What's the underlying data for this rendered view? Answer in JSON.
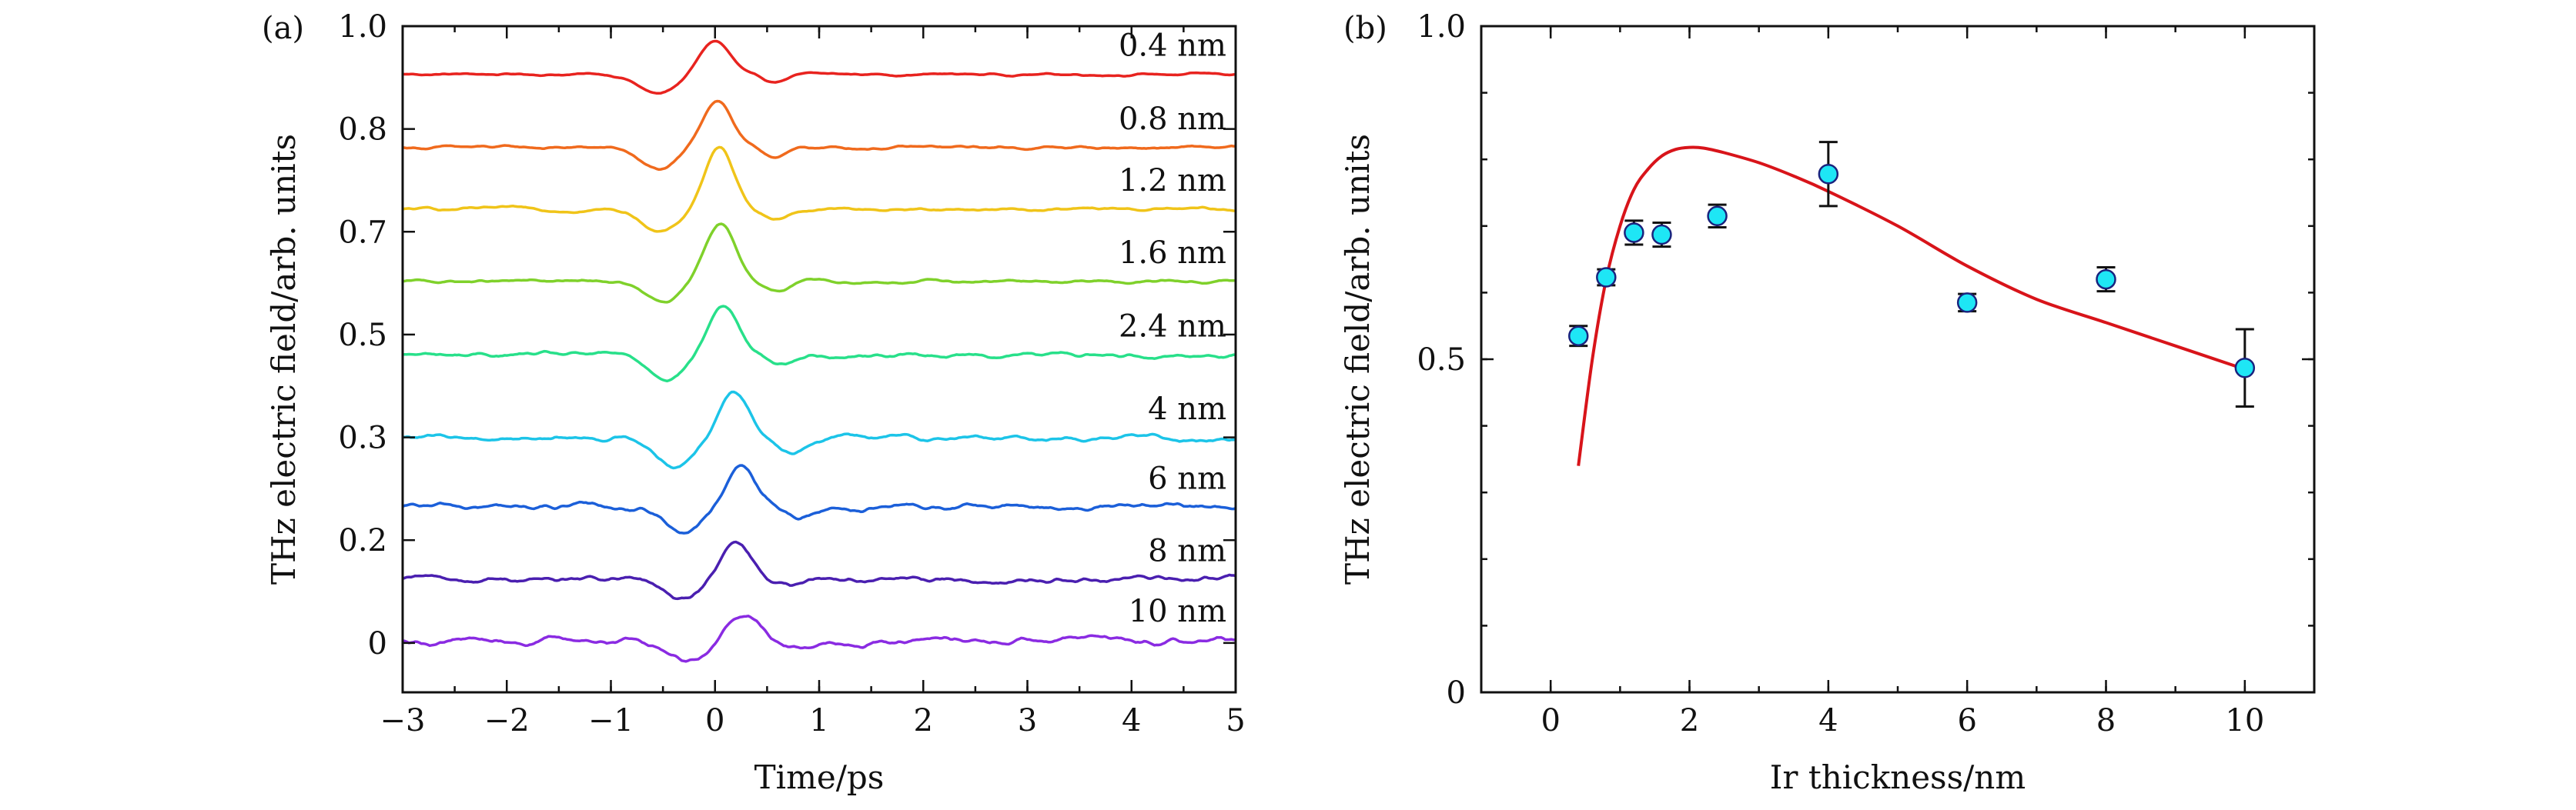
{
  "chart_data": [
    {
      "type": "line",
      "panel_label": "(a)",
      "xlabel": "Time/ps",
      "ylabel": "THz electric field/arb. units",
      "xlim": [
        -3,
        5
      ],
      "x_ticks": [
        -3,
        -2,
        -1,
        0,
        1,
        2,
        3,
        4,
        5
      ],
      "x_tick_labels": [
        "−3",
        "−2",
        "−1",
        "0",
        "1",
        "2",
        "3",
        "4",
        "5"
      ],
      "ylim": [
        -0.08,
        1.0
      ],
      "y_ticks": [
        0,
        0.1667,
        0.3333,
        0.5,
        0.6667,
        0.8333,
        1.0
      ],
      "y_tick_labels": [
        "0",
        "0.2",
        "0.3",
        "0.5",
        "0.7",
        "0.8",
        "1.0"
      ],
      "series": [
        {
          "name": "0.4 nm",
          "baseline": 0.922,
          "dip": 0.032,
          "peak": 0.054,
          "peak_time": 0.0,
          "noise": 0.003,
          "color": "#e8231f"
        },
        {
          "name": "0.8 nm",
          "baseline": 0.803,
          "dip": 0.036,
          "peak": 0.078,
          "peak_time": 0.02,
          "noise": 0.004,
          "color": "#f06a1d"
        },
        {
          "name": "1.2 nm",
          "baseline": 0.703,
          "dip": 0.036,
          "peak": 0.099,
          "peak_time": 0.04,
          "noise": 0.004,
          "color": "#f0c419"
        },
        {
          "name": "1.6 nm",
          "baseline": 0.586,
          "dip": 0.035,
          "peak": 0.096,
          "peak_time": 0.05,
          "noise": 0.004,
          "color": "#7fd12b"
        },
        {
          "name": "2.4 nm",
          "baseline": 0.467,
          "dip": 0.035,
          "peak": 0.08,
          "peak_time": 0.08,
          "noise": 0.006,
          "color": "#28e08a"
        },
        {
          "name": "4 nm",
          "baseline": 0.333,
          "dip": 0.045,
          "peak": 0.079,
          "peak_time": 0.18,
          "noise": 0.007,
          "color": "#1cc4e8"
        },
        {
          "name": "6 nm",
          "baseline": 0.22,
          "dip": 0.038,
          "peak": 0.059,
          "peak_time": 0.25,
          "noise": 0.008,
          "color": "#1b5fd9"
        },
        {
          "name": "8 nm",
          "baseline": 0.103,
          "dip": 0.032,
          "peak": 0.057,
          "peak_time": 0.2,
          "noise": 0.008,
          "color": "#4a1fb0"
        },
        {
          "name": "10 nm",
          "baseline": 0.005,
          "dip": 0.03,
          "peak": 0.044,
          "peak_time": 0.28,
          "noise": 0.009,
          "color": "#8a2be2"
        }
      ]
    },
    {
      "type": "scatter",
      "panel_label": "(b)",
      "xlabel": "Ir thickness/nm",
      "ylabel": "THz electric field/arb. units",
      "xlim": [
        -1,
        11
      ],
      "ylim": [
        0,
        1.0
      ],
      "x_ticks": [
        0,
        2,
        4,
        6,
        8,
        10
      ],
      "x_tick_labels": [
        "0",
        "2",
        "4",
        "6",
        "8",
        "10"
      ],
      "y_ticks": [
        0,
        0.5,
        1.0
      ],
      "y_tick_labels": [
        "0",
        "0.5",
        "1.0"
      ],
      "points": [
        {
          "x": 0.4,
          "y": 0.535,
          "err": 0.015
        },
        {
          "x": 0.8,
          "y": 0.623,
          "err": 0.012
        },
        {
          "x": 1.2,
          "y": 0.69,
          "err": 0.018
        },
        {
          "x": 1.6,
          "y": 0.687,
          "err": 0.018
        },
        {
          "x": 2.4,
          "y": 0.715,
          "err": 0.017
        },
        {
          "x": 4.0,
          "y": 0.778,
          "err": 0.048
        },
        {
          "x": 6.0,
          "y": 0.585,
          "err": 0.013
        },
        {
          "x": 8.0,
          "y": 0.62,
          "err": 0.018
        },
        {
          "x": 10.0,
          "y": 0.487,
          "err": 0.058
        }
      ],
      "fit": {
        "name": "fit",
        "x": [
          0.4,
          0.6,
          0.8,
          1.0,
          1.2,
          1.4,
          1.6,
          1.8,
          2.0,
          2.2,
          2.5,
          3.0,
          3.5,
          4.0,
          5.0,
          6.0,
          7.0,
          8.0,
          9.0,
          10.0
        ],
        "y": [
          0.34,
          0.5,
          0.62,
          0.7,
          0.755,
          0.785,
          0.805,
          0.815,
          0.818,
          0.817,
          0.81,
          0.795,
          0.775,
          0.752,
          0.7,
          0.64,
          0.59,
          0.555,
          0.52,
          0.485
        ],
        "color": "#d8141a"
      },
      "marker_color": "#1ee6f5",
      "errorbar_color": "#111111"
    }
  ]
}
